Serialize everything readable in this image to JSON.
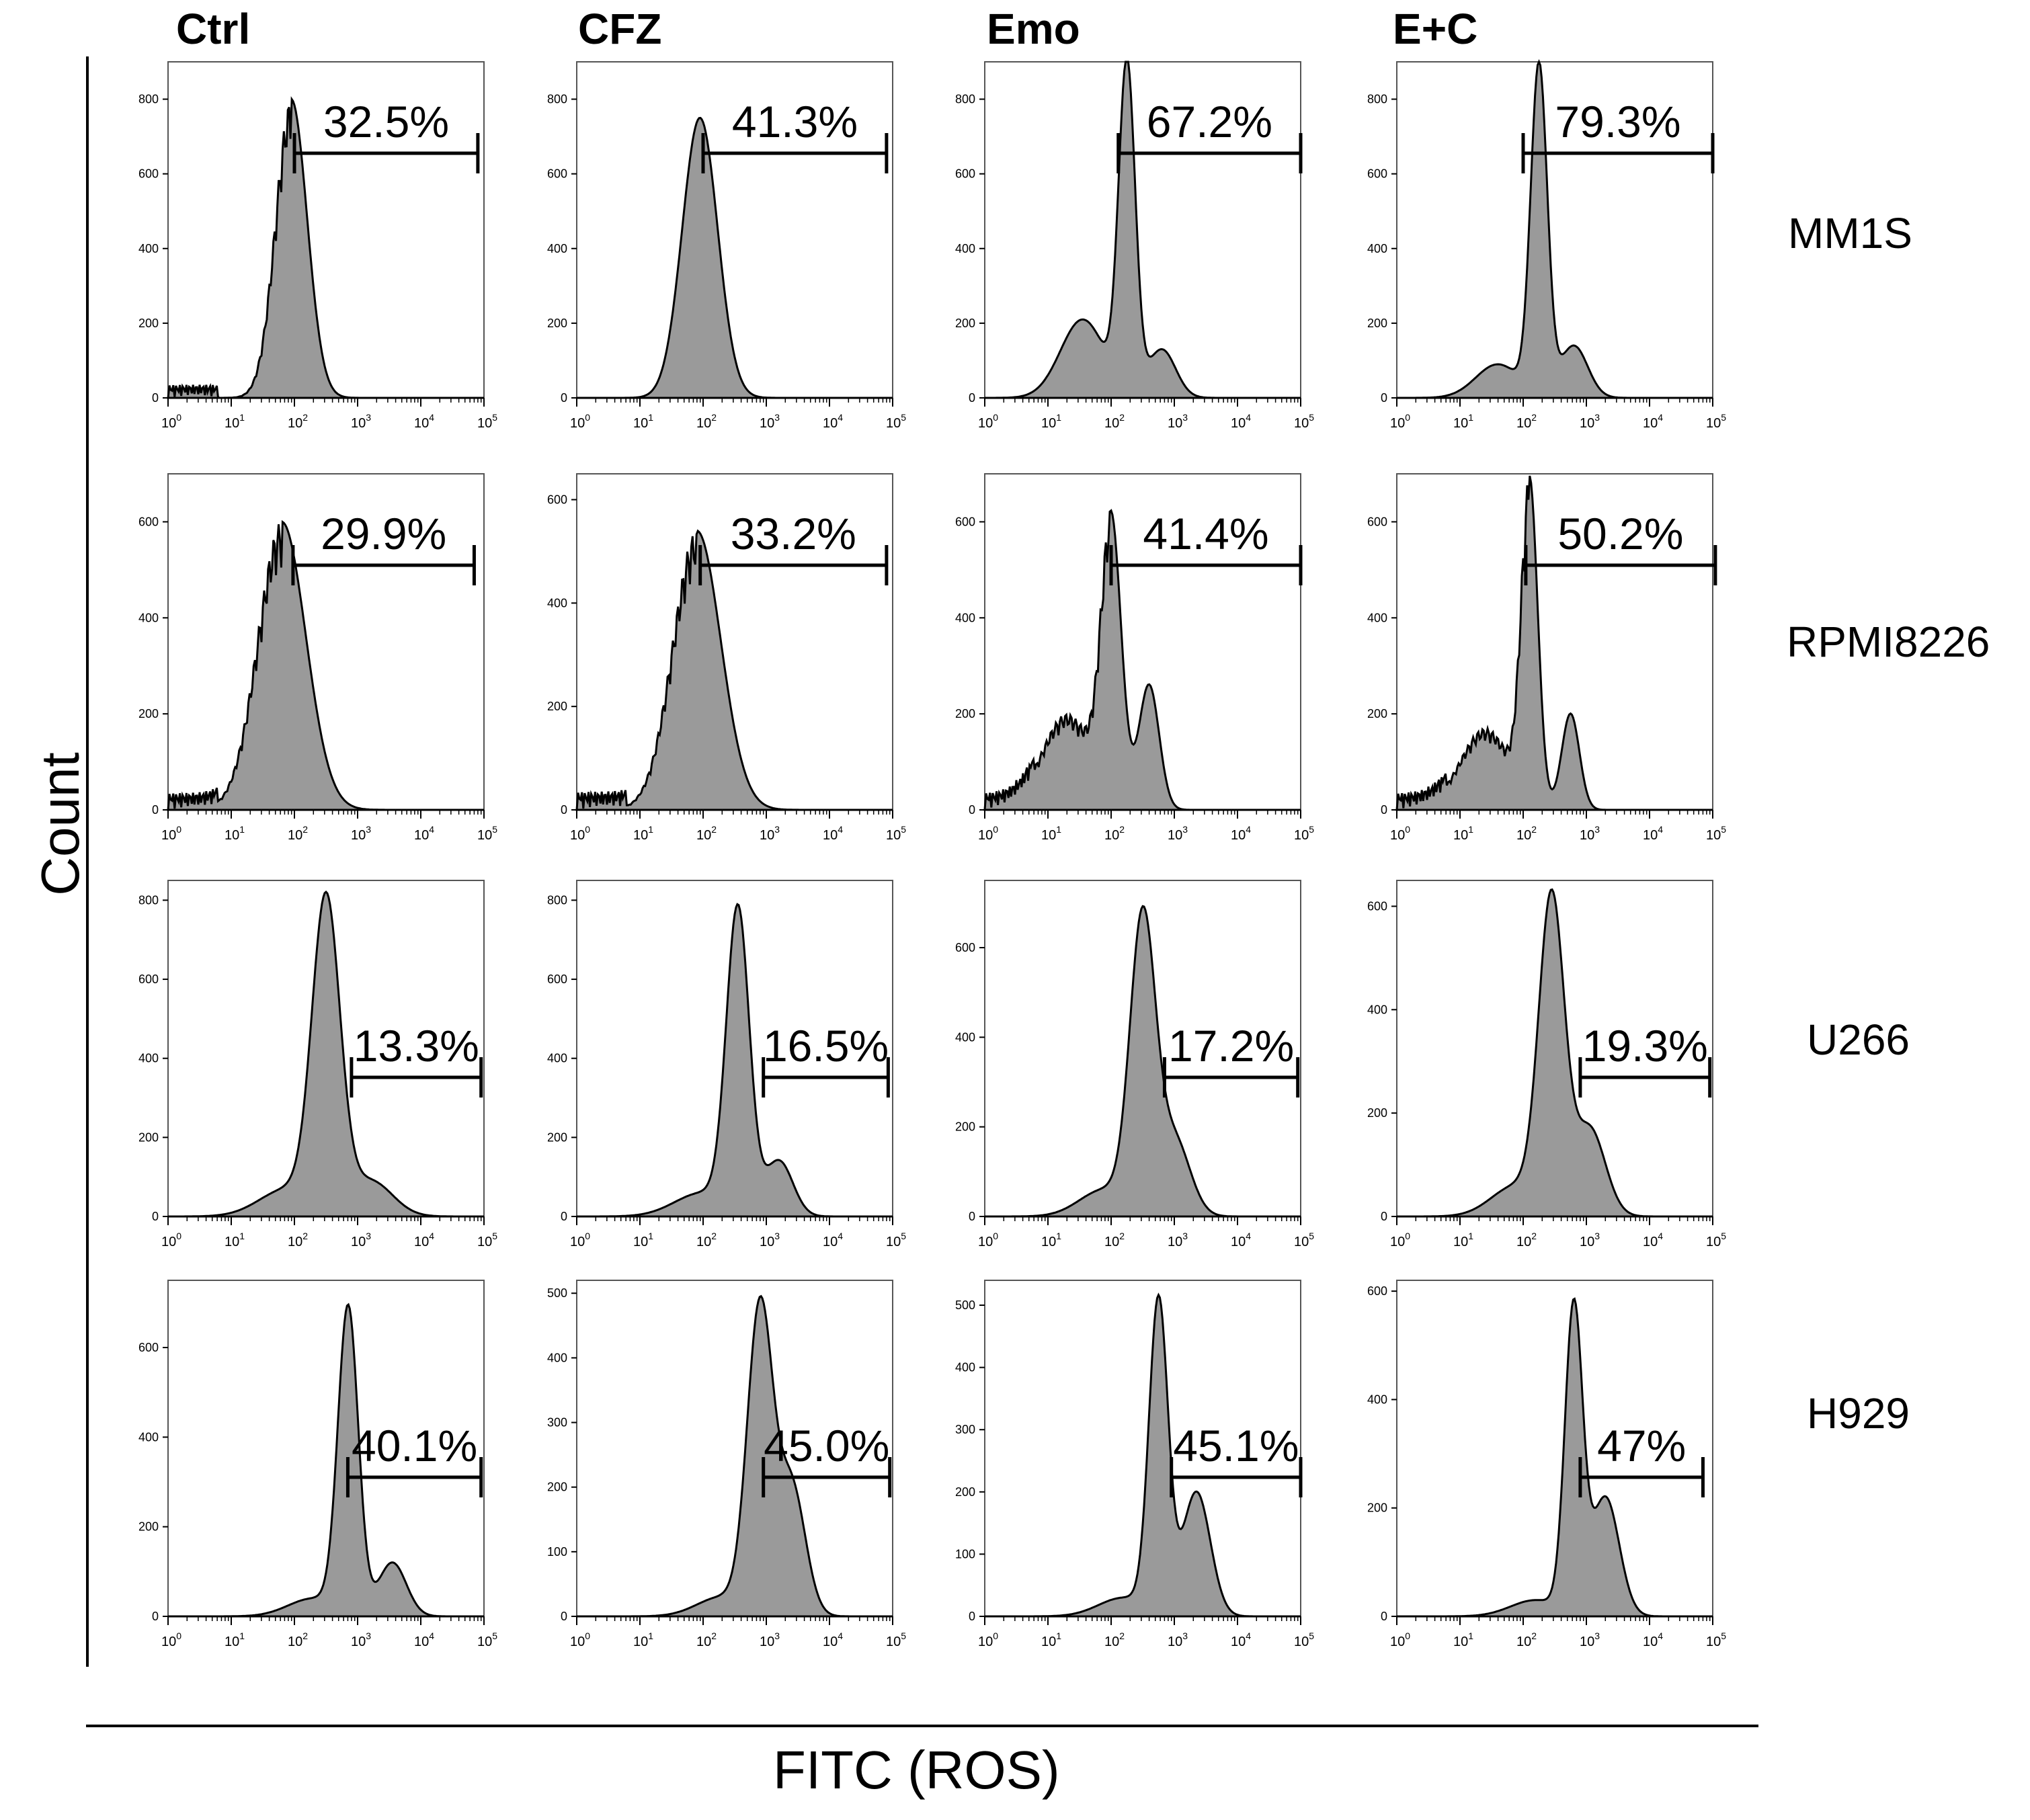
{
  "figure": {
    "x_axis_title": "FITC (ROS)",
    "y_axis_title": "Count",
    "columns": [
      "Ctrl",
      "CFZ",
      "Emo",
      "E+C"
    ],
    "rows": [
      "MM1S",
      "RPMI8226",
      "U266",
      "H929"
    ]
  },
  "colors": {
    "fill": "#9a9a9a",
    "stroke": "#000000",
    "frame": "#555555"
  },
  "chart_data": [
    {
      "type": "area",
      "row": "MM1S",
      "column": "Ctrl",
      "gate_percent": "32.5%",
      "gate_range": [
        100,
        80000
      ],
      "ymax": 900,
      "yticks": [
        0,
        200,
        400,
        600,
        800
      ],
      "xticks": [
        "10^0",
        "10^1",
        "10^2",
        "10^3",
        "10^4",
        "10^5"
      ],
      "peaks": [
        [
          1.95,
          800,
          0.25
        ]
      ],
      "noisy": true
    },
    {
      "type": "area",
      "row": "MM1S",
      "column": "CFZ",
      "gate_percent": "41.3%",
      "gate_range": [
        100,
        80000
      ],
      "ymax": 900,
      "yticks": [
        0,
        200,
        400,
        600,
        800
      ],
      "xticks": [
        "10^0",
        "10^1",
        "10^2",
        "10^3",
        "10^4",
        "10^5"
      ],
      "peaks": [
        [
          1.95,
          750,
          0.28
        ]
      ],
      "noisy": false
    },
    {
      "type": "area",
      "row": "MM1S",
      "column": "Emo",
      "gate_percent": "67.2%",
      "gate_range": [
        130,
        100000
      ],
      "ymax": 900,
      "yticks": [
        0,
        200,
        400,
        600,
        800
      ],
      "xticks": [
        "10^0",
        "10^1",
        "10^2",
        "10^3",
        "10^4",
        "10^5"
      ],
      "peaks": [
        [
          2.25,
          880,
          0.13
        ],
        [
          1.55,
          210,
          0.35
        ],
        [
          2.8,
          130,
          0.22
        ]
      ],
      "noisy": false
    },
    {
      "type": "area",
      "row": "MM1S",
      "column": "E+C",
      "gate_percent": "79.3%",
      "gate_range": [
        100,
        100000
      ],
      "ymax": 900,
      "yticks": [
        0,
        200,
        400,
        600,
        800
      ],
      "xticks": [
        "10^0",
        "10^1",
        "10^2",
        "10^3",
        "10^4",
        "10^5"
      ],
      "peaks": [
        [
          2.25,
          880,
          0.13
        ],
        [
          1.6,
          90,
          0.35
        ],
        [
          2.8,
          140,
          0.22
        ]
      ],
      "noisy": false
    },
    {
      "type": "area",
      "row": "RPMI8226",
      "column": "Ctrl",
      "gate_percent": "29.9%",
      "gate_range": [
        95,
        70000
      ],
      "ymax": 700,
      "yticks": [
        0,
        200,
        400,
        600
      ],
      "xticks": [
        "10^0",
        "10^1",
        "10^2",
        "10^3",
        "10^4",
        "10^5"
      ],
      "peaks": [
        [
          1.8,
          600,
          0.38
        ]
      ],
      "noisy": true
    },
    {
      "type": "area",
      "row": "RPMI8226",
      "column": "CFZ",
      "gate_percent": "33.2%",
      "gate_range": [
        90,
        80000
      ],
      "ymax": 650,
      "yticks": [
        0,
        200,
        400,
        600
      ],
      "xticks": [
        "10^0",
        "10^1",
        "10^2",
        "10^3",
        "10^4",
        "10^5"
      ],
      "peaks": [
        [
          1.9,
          540,
          0.38
        ]
      ],
      "noisy": true
    },
    {
      "type": "area",
      "row": "RPMI8226",
      "column": "Emo",
      "gate_percent": "41.4%",
      "gate_range": [
        100,
        100000
      ],
      "ymax": 700,
      "yticks": [
        0,
        200,
        400,
        600
      ],
      "xticks": [
        "10^0",
        "10^1",
        "10^2",
        "10^3",
        "10^4",
        "10^5"
      ],
      "peaks": [
        [
          2.0,
          580,
          0.16
        ],
        [
          2.6,
          260,
          0.16
        ],
        [
          1.3,
          200,
          0.4
        ]
      ],
      "noisy": true
    },
    {
      "type": "area",
      "row": "RPMI8226",
      "column": "E+C",
      "gate_percent": "50.2%",
      "gate_range": [
        110,
        110000
      ],
      "ymax": 700,
      "yticks": [
        0,
        200,
        400,
        600
      ],
      "xticks": [
        "10^0",
        "10^1",
        "10^2",
        "10^3",
        "10^4",
        "10^5"
      ],
      "peaks": [
        [
          2.1,
          660,
          0.13
        ],
        [
          2.75,
          200,
          0.14
        ],
        [
          1.4,
          170,
          0.4
        ]
      ],
      "noisy": true
    },
    {
      "type": "area",
      "row": "U266",
      "column": "Ctrl",
      "gate_percent": "13.3%",
      "gate_range": [
        800,
        90000
      ],
      "ymax": 850,
      "yticks": [
        0,
        200,
        400,
        600,
        800
      ],
      "xticks": [
        "10^0",
        "10^1",
        "10^2",
        "10^3",
        "10^4",
        "10^5"
      ],
      "peaks": [
        [
          2.5,
          780,
          0.22
        ],
        [
          1.9,
          70,
          0.45
        ],
        [
          3.2,
          90,
          0.35
        ]
      ],
      "noisy": false
    },
    {
      "type": "area",
      "row": "U266",
      "column": "CFZ",
      "gate_percent": "16.5%",
      "gate_range": [
        900,
        85000
      ],
      "ymax": 850,
      "yticks": [
        0,
        200,
        400,
        600,
        800
      ],
      "xticks": [
        "10^0",
        "10^1",
        "10^2",
        "10^3",
        "10^4",
        "10^5"
      ],
      "peaks": [
        [
          2.55,
          760,
          0.18
        ],
        [
          2.0,
          60,
          0.45
        ],
        [
          3.2,
          140,
          0.22
        ]
      ],
      "noisy": false
    },
    {
      "type": "area",
      "row": "U266",
      "column": "Emo",
      "gate_percent": "17.2%",
      "gate_range": [
        700,
        90000
      ],
      "ymax": 750,
      "yticks": [
        0,
        200,
        400,
        600
      ],
      "xticks": [
        "10^0",
        "10^1",
        "10^2",
        "10^3",
        "10^4",
        "10^5"
      ],
      "peaks": [
        [
          2.5,
          650,
          0.2
        ],
        [
          3.0,
          170,
          0.25
        ],
        [
          1.9,
          60,
          0.4
        ]
      ],
      "noisy": false
    },
    {
      "type": "area",
      "row": "U266",
      "column": "E+C",
      "gate_percent": "19.3%",
      "gate_range": [
        800,
        90000
      ],
      "ymax": 650,
      "yticks": [
        0,
        200,
        400,
        600
      ],
      "xticks": [
        "10^0",
        "10^1",
        "10^2",
        "10^3",
        "10^4",
        "10^5"
      ],
      "peaks": [
        [
          2.45,
          600,
          0.2
        ],
        [
          3.05,
          170,
          0.25
        ],
        [
          1.9,
          60,
          0.4
        ]
      ],
      "noisy": false
    },
    {
      "type": "area",
      "row": "H929",
      "column": "Ctrl",
      "gate_percent": "40.1%",
      "gate_range": [
        700,
        90000
      ],
      "ymax": 750,
      "yticks": [
        0,
        200,
        400,
        600
      ],
      "xticks": [
        "10^0",
        "10^1",
        "10^2",
        "10^3",
        "10^4",
        "10^5"
      ],
      "peaks": [
        [
          2.85,
          680,
          0.16
        ],
        [
          3.55,
          120,
          0.22
        ],
        [
          2.3,
          40,
          0.4
        ]
      ],
      "noisy": false
    },
    {
      "type": "area",
      "row": "H929",
      "column": "CFZ",
      "gate_percent": "45.0%",
      "gate_range": [
        900,
        90000
      ],
      "ymax": 520,
      "yticks": [
        0,
        100,
        200,
        300,
        400,
        500
      ],
      "xticks": [
        "10^0",
        "10^1",
        "10^2",
        "10^3",
        "10^4",
        "10^5"
      ],
      "peaks": [
        [
          2.9,
          470,
          0.2
        ],
        [
          3.4,
          200,
          0.22
        ],
        [
          2.3,
          30,
          0.4
        ]
      ],
      "noisy": false
    },
    {
      "type": "area",
      "row": "H929",
      "column": "Emo",
      "gate_percent": "45.1%",
      "gate_range": [
        900,
        100000
      ],
      "ymax": 540,
      "yticks": [
        0,
        100,
        200,
        300,
        400,
        500
      ],
      "xticks": [
        "10^0",
        "10^1",
        "10^2",
        "10^3",
        "10^4",
        "10^5"
      ],
      "peaks": [
        [
          2.75,
          500,
          0.15
        ],
        [
          3.35,
          200,
          0.22
        ],
        [
          2.2,
          30,
          0.4
        ]
      ],
      "noisy": false
    },
    {
      "type": "area",
      "row": "H929",
      "column": "E+C",
      "gate_percent": "47%",
      "gate_range": [
        800,
        70000
      ],
      "ymax": 620,
      "yticks": [
        0,
        200,
        400,
        600
      ],
      "xticks": [
        "10^0",
        "10^1",
        "10^2",
        "10^3",
        "10^4",
        "10^5"
      ],
      "peaks": [
        [
          2.8,
          560,
          0.14
        ],
        [
          3.3,
          220,
          0.22
        ],
        [
          2.2,
          30,
          0.4
        ]
      ],
      "noisy": false
    }
  ]
}
